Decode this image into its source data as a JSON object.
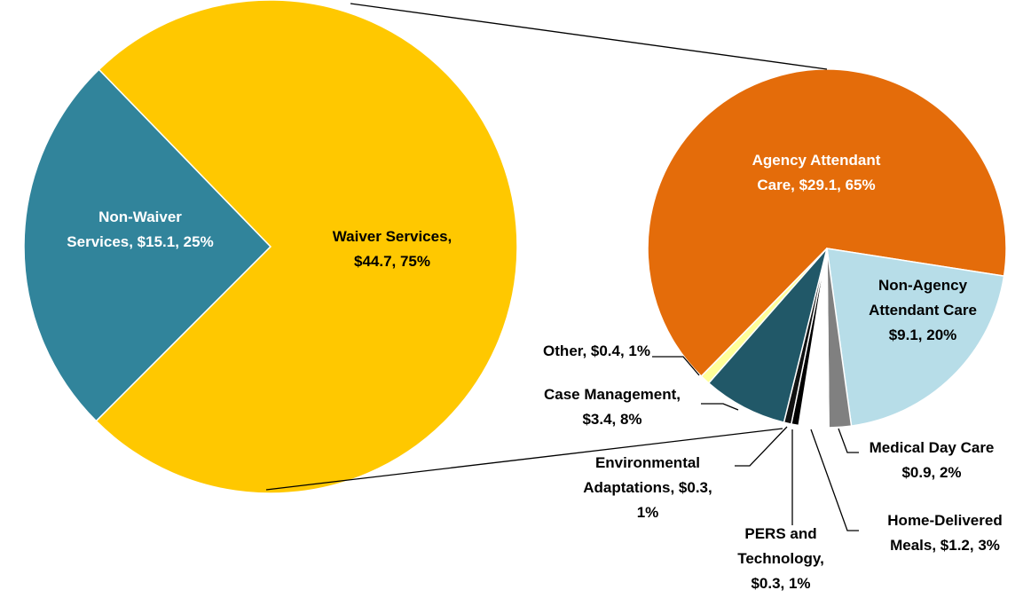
{
  "chart_data": [
    {
      "type": "pie",
      "labels": [
        [
          "Non-Waiver",
          "Services, $15.1, 25%"
        ],
        [
          "Waiver Services,",
          "$44.7, 75%"
        ]
      ],
      "values": [
        15.1,
        44.7
      ],
      "colors": [
        "#31849b",
        "#ffc800"
      ]
    },
    {
      "type": "pie",
      "labels": [
        [
          "Agency Attendant",
          "Care, $29.1, 65%"
        ],
        [
          "Non-Agency",
          "Attendant Care",
          "$9.1, 20%"
        ],
        [
          "Medical Day Care",
          "$0.9, 2%"
        ],
        [
          "Home-Delivered",
          "Meals, $1.2, 3%"
        ],
        [
          "PERS and",
          "Technology,",
          "$0.3, 1%"
        ],
        [
          "Environmental",
          "Adaptations, $0.3,",
          "1%"
        ],
        [
          "Case Management,",
          "$3.4, 8%"
        ],
        [
          "Other, $0.4, 1%"
        ]
      ],
      "values": [
        29.1,
        9.1,
        0.9,
        1.2,
        0.3,
        0.3,
        3.4,
        0.4
      ],
      "colors": [
        "#e46c0a",
        "#b7dde8",
        "#808080",
        "#ffffff",
        "#000000",
        "#111111",
        "#215868",
        "#ffff99"
      ]
    }
  ]
}
